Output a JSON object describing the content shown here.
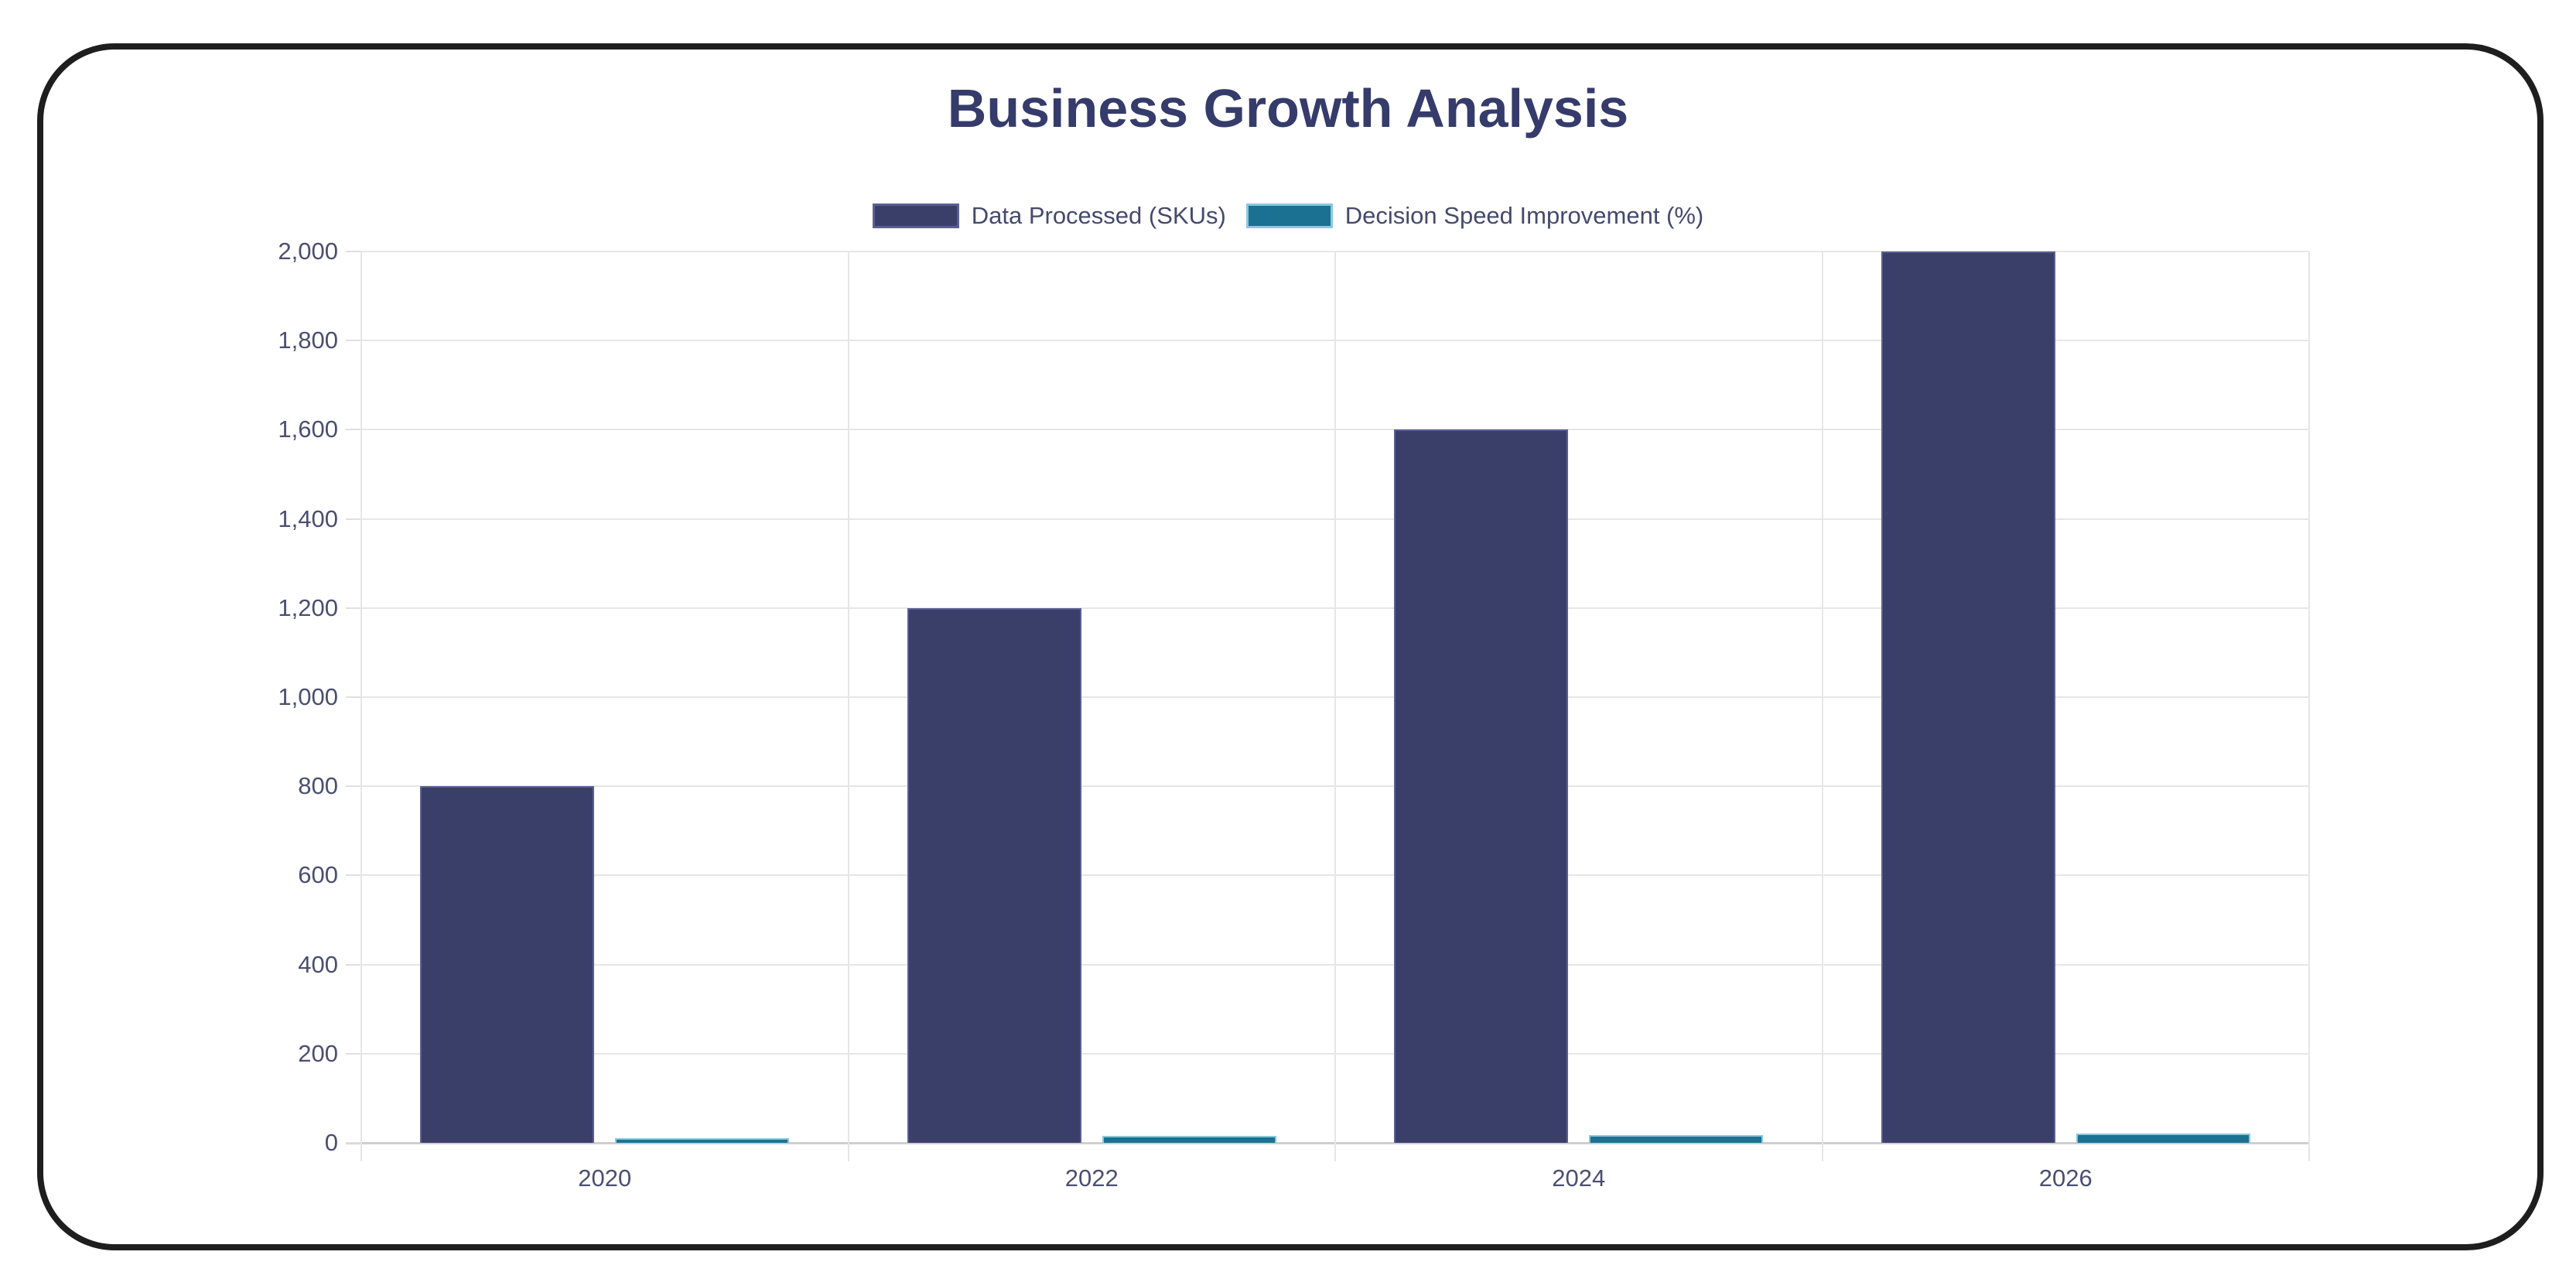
{
  "chart": {
    "title": "Business Growth Analysis",
    "colors": {
      "series_1_fill": "#3a3f69",
      "series_1_border": "#5a6090",
      "series_2_fill": "#1b7192",
      "series_2_border": "#8cc7dc",
      "title": "#353b6a",
      "frame_border": "#1e1e1e",
      "grid": "#e6e6e6"
    },
    "legend": [
      {
        "label": "Data Processed (SKUs)"
      },
      {
        "label": "Decision Speed Improvement (%)"
      }
    ],
    "y_ticks": [
      "2,000",
      "1,800",
      "1,600",
      "1,400",
      "1,200",
      "1,000",
      "800",
      "600",
      "400",
      "200",
      "0"
    ],
    "x_ticks": [
      "2020",
      "2022",
      "2024",
      "2026"
    ]
  },
  "chart_data": {
    "type": "bar",
    "title": "Business Growth Analysis",
    "categories": [
      "2020",
      "2022",
      "2024",
      "2026"
    ],
    "series": [
      {
        "name": "Data Processed (SKUs)",
        "values": [
          800,
          1200,
          1600,
          2000
        ]
      },
      {
        "name": "Decision Speed Improvement (%)",
        "values": [
          10,
          15,
          18,
          20
        ]
      }
    ],
    "xlabel": "",
    "ylabel": "",
    "ylim": [
      0,
      2000
    ],
    "y_tick_step": 200,
    "grid": true,
    "legend_position": "top"
  }
}
